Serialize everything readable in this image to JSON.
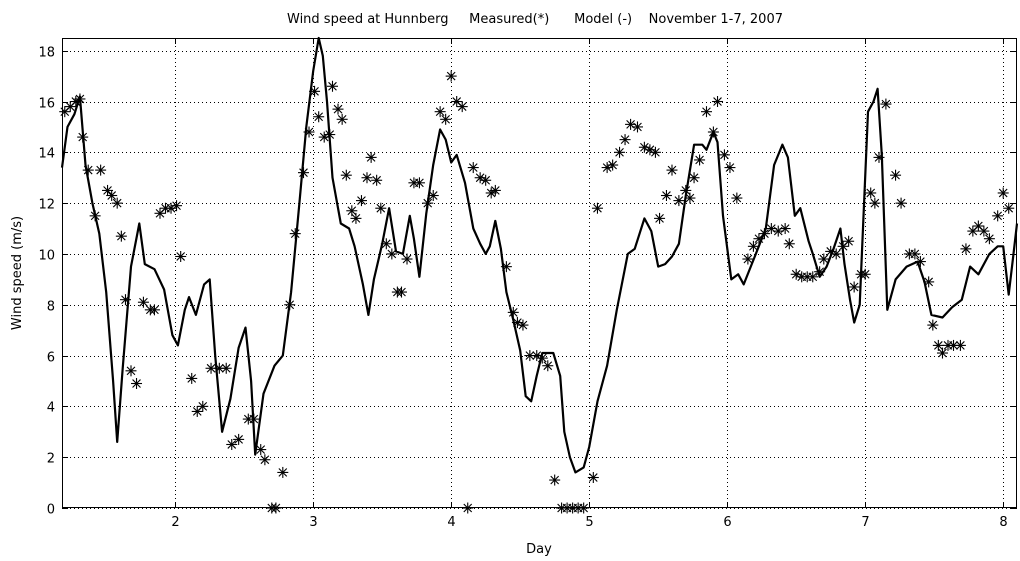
{
  "chart_data": {
    "type": "line",
    "title": "Wind speed at Hunnberg     Measured(*)      Model (-)    November 1-7, 2007",
    "xlabel": "Day",
    "ylabel": "Wind speed (m/s)",
    "xlim": [
      1.18,
      8.1
    ],
    "ylim": [
      0,
      18.5
    ],
    "xticks": [
      2,
      3,
      4,
      5,
      6,
      7,
      8
    ],
    "yticks": [
      0,
      2,
      4,
      6,
      8,
      10,
      12,
      14,
      16,
      18
    ],
    "grid": true,
    "series": [
      {
        "name": "Model",
        "style": "solid line",
        "points": [
          [
            1.18,
            13.4
          ],
          [
            1.22,
            15.0
          ],
          [
            1.27,
            15.5
          ],
          [
            1.31,
            16.2
          ],
          [
            1.35,
            13.5
          ],
          [
            1.4,
            12.0
          ],
          [
            1.45,
            10.8
          ],
          [
            1.5,
            8.5
          ],
          [
            1.55,
            5.0
          ],
          [
            1.58,
            2.6
          ],
          [
            1.62,
            5.5
          ],
          [
            1.68,
            9.5
          ],
          [
            1.74,
            11.2
          ],
          [
            1.78,
            9.6
          ],
          [
            1.85,
            9.4
          ],
          [
            1.92,
            8.6
          ],
          [
            1.98,
            6.8
          ],
          [
            2.02,
            6.4
          ],
          [
            2.07,
            7.8
          ],
          [
            2.1,
            8.3
          ],
          [
            2.15,
            7.6
          ],
          [
            2.21,
            8.8
          ],
          [
            2.25,
            9.0
          ],
          [
            2.29,
            6.0
          ],
          [
            2.34,
            3.0
          ],
          [
            2.4,
            4.3
          ],
          [
            2.46,
            6.3
          ],
          [
            2.51,
            7.1
          ],
          [
            2.55,
            5.0
          ],
          [
            2.58,
            2.1
          ],
          [
            2.64,
            4.5
          ],
          [
            2.72,
            5.6
          ],
          [
            2.78,
            6.0
          ],
          [
            2.84,
            8.5
          ],
          [
            2.9,
            12.0
          ],
          [
            2.95,
            15.0
          ],
          [
            3.0,
            17.2
          ],
          [
            3.04,
            18.5
          ],
          [
            3.07,
            17.8
          ],
          [
            3.1,
            16.0
          ],
          [
            3.14,
            13.0
          ],
          [
            3.2,
            11.2
          ],
          [
            3.26,
            11.0
          ],
          [
            3.3,
            10.3
          ],
          [
            3.36,
            8.8
          ],
          [
            3.4,
            7.6
          ],
          [
            3.44,
            9.0
          ],
          [
            3.5,
            10.4
          ],
          [
            3.55,
            11.8
          ],
          [
            3.6,
            10.1
          ],
          [
            3.65,
            10.0
          ],
          [
            3.7,
            11.5
          ],
          [
            3.73,
            10.6
          ],
          [
            3.77,
            9.1
          ],
          [
            3.82,
            11.6
          ],
          [
            3.87,
            13.5
          ],
          [
            3.92,
            14.9
          ],
          [
            3.96,
            14.5
          ],
          [
            4.0,
            13.6
          ],
          [
            4.04,
            13.9
          ],
          [
            4.1,
            12.8
          ],
          [
            4.16,
            11.0
          ],
          [
            4.21,
            10.4
          ],
          [
            4.25,
            10.0
          ],
          [
            4.28,
            10.3
          ],
          [
            4.32,
            11.3
          ],
          [
            4.36,
            10.2
          ],
          [
            4.4,
            8.5
          ],
          [
            4.45,
            7.4
          ],
          [
            4.5,
            6.2
          ],
          [
            4.54,
            4.4
          ],
          [
            4.58,
            4.2
          ],
          [
            4.62,
            5.2
          ],
          [
            4.66,
            6.1
          ],
          [
            4.74,
            6.1
          ],
          [
            4.79,
            5.2
          ],
          [
            4.82,
            3.0
          ],
          [
            4.86,
            2.0
          ],
          [
            4.9,
            1.4
          ],
          [
            4.96,
            1.6
          ],
          [
            5.0,
            2.4
          ],
          [
            5.06,
            4.2
          ],
          [
            5.13,
            5.6
          ],
          [
            5.2,
            7.8
          ],
          [
            5.28,
            10.0
          ],
          [
            5.33,
            10.2
          ],
          [
            5.4,
            11.4
          ],
          [
            5.45,
            10.9
          ],
          [
            5.5,
            9.5
          ],
          [
            5.55,
            9.6
          ],
          [
            5.6,
            9.9
          ],
          [
            5.65,
            10.4
          ],
          [
            5.7,
            12.3
          ],
          [
            5.76,
            14.3
          ],
          [
            5.82,
            14.3
          ],
          [
            5.85,
            14.1
          ],
          [
            5.9,
            14.8
          ],
          [
            5.93,
            14.4
          ],
          [
            5.97,
            11.5
          ],
          [
            6.03,
            9.0
          ],
          [
            6.08,
            9.2
          ],
          [
            6.12,
            8.8
          ],
          [
            6.2,
            9.9
          ],
          [
            6.28,
            11.0
          ],
          [
            6.34,
            13.5
          ],
          [
            6.4,
            14.3
          ],
          [
            6.44,
            13.8
          ],
          [
            6.49,
            11.5
          ],
          [
            6.53,
            11.8
          ],
          [
            6.59,
            10.5
          ],
          [
            6.62,
            10.0
          ],
          [
            6.67,
            9.1
          ],
          [
            6.72,
            9.5
          ],
          [
            6.77,
            10.2
          ],
          [
            6.82,
            11.0
          ],
          [
            6.85,
            9.6
          ],
          [
            6.89,
            8.2
          ],
          [
            6.92,
            7.3
          ],
          [
            6.96,
            8.0
          ],
          [
            7.02,
            15.6
          ],
          [
            7.06,
            16.0
          ],
          [
            7.09,
            16.5
          ],
          [
            7.12,
            13.9
          ],
          [
            7.16,
            7.8
          ],
          [
            7.22,
            9.0
          ],
          [
            7.3,
            9.5
          ],
          [
            7.38,
            9.7
          ],
          [
            7.43,
            8.9
          ],
          [
            7.48,
            7.6
          ],
          [
            7.56,
            7.5
          ],
          [
            7.63,
            7.9
          ],
          [
            7.7,
            8.2
          ],
          [
            7.76,
            9.5
          ],
          [
            7.82,
            9.2
          ],
          [
            7.9,
            10.0
          ],
          [
            7.96,
            10.3
          ],
          [
            8.0,
            10.3
          ],
          [
            8.04,
            8.4
          ],
          [
            8.07,
            9.8
          ],
          [
            8.1,
            11.2
          ]
        ]
      },
      {
        "name": "Measured",
        "style": "asterisk markers",
        "points": [
          [
            1.2,
            15.6
          ],
          [
            1.24,
            15.8
          ],
          [
            1.28,
            16.0
          ],
          [
            1.31,
            16.1
          ],
          [
            1.33,
            14.6
          ],
          [
            1.37,
            13.3
          ],
          [
            1.42,
            11.5
          ],
          [
            1.46,
            13.3
          ],
          [
            1.51,
            12.5
          ],
          [
            1.54,
            12.3
          ],
          [
            1.58,
            12.0
          ],
          [
            1.61,
            10.7
          ],
          [
            1.64,
            8.2
          ],
          [
            1.68,
            5.4
          ],
          [
            1.72,
            4.9
          ],
          [
            1.77,
            8.1
          ],
          [
            1.82,
            7.8
          ],
          [
            1.85,
            7.8
          ],
          [
            1.89,
            11.6
          ],
          [
            1.93,
            11.8
          ],
          [
            1.97,
            11.8
          ],
          [
            2.01,
            11.9
          ],
          [
            2.04,
            9.9
          ],
          [
            2.12,
            5.1
          ],
          [
            2.16,
            3.8
          ],
          [
            2.2,
            4.0
          ],
          [
            2.26,
            5.5
          ],
          [
            2.32,
            5.5
          ],
          [
            2.37,
            5.5
          ],
          [
            2.41,
            2.5
          ],
          [
            2.46,
            2.7
          ],
          [
            2.53,
            3.5
          ],
          [
            2.57,
            3.5
          ],
          [
            2.62,
            2.3
          ],
          [
            2.65,
            1.9
          ],
          [
            2.7,
            0.0
          ],
          [
            2.73,
            0.0
          ],
          [
            2.78,
            1.4
          ],
          [
            2.83,
            8.0
          ],
          [
            2.87,
            10.8
          ],
          [
            2.93,
            13.2
          ],
          [
            2.97,
            14.8
          ],
          [
            3.01,
            16.4
          ],
          [
            3.04,
            15.4
          ],
          [
            3.08,
            14.6
          ],
          [
            3.12,
            14.7
          ],
          [
            3.14,
            16.6
          ],
          [
            3.18,
            15.7
          ],
          [
            3.21,
            15.3
          ],
          [
            3.24,
            13.1
          ],
          [
            3.28,
            11.7
          ],
          [
            3.31,
            11.4
          ],
          [
            3.35,
            12.1
          ],
          [
            3.39,
            13.0
          ],
          [
            3.42,
            13.8
          ],
          [
            3.46,
            12.9
          ],
          [
            3.49,
            11.8
          ],
          [
            3.53,
            10.4
          ],
          [
            3.57,
            10.0
          ],
          [
            3.61,
            8.5
          ],
          [
            3.64,
            8.5
          ],
          [
            3.68,
            9.8
          ],
          [
            3.73,
            12.8
          ],
          [
            3.77,
            12.8
          ],
          [
            3.83,
            12.0
          ],
          [
            3.87,
            12.3
          ],
          [
            3.92,
            15.6
          ],
          [
            3.96,
            15.3
          ],
          [
            4.0,
            17.0
          ],
          [
            4.04,
            16.0
          ],
          [
            4.08,
            15.8
          ],
          [
            4.12,
            0.0
          ],
          [
            4.16,
            13.4
          ],
          [
            4.21,
            13.0
          ],
          [
            4.25,
            12.9
          ],
          [
            4.29,
            12.4
          ],
          [
            4.32,
            12.5
          ],
          [
            4.4,
            9.5
          ],
          [
            4.45,
            7.7
          ],
          [
            4.48,
            7.3
          ],
          [
            4.52,
            7.2
          ],
          [
            4.57,
            6.0
          ],
          [
            4.62,
            6.0
          ],
          [
            4.66,
            5.9
          ],
          [
            4.7,
            5.6
          ],
          [
            4.75,
            1.1
          ],
          [
            4.8,
            0.0
          ],
          [
            4.84,
            0.0
          ],
          [
            4.88,
            0.0
          ],
          [
            4.92,
            0.0
          ],
          [
            4.96,
            0.0
          ],
          [
            5.03,
            1.2
          ],
          [
            5.06,
            11.8
          ],
          [
            5.13,
            13.4
          ],
          [
            5.17,
            13.5
          ],
          [
            5.22,
            14.0
          ],
          [
            5.26,
            14.5
          ],
          [
            5.3,
            15.1
          ],
          [
            5.35,
            15.0
          ],
          [
            5.4,
            14.2
          ],
          [
            5.44,
            14.1
          ],
          [
            5.48,
            14.0
          ],
          [
            5.51,
            11.4
          ],
          [
            5.56,
            12.3
          ],
          [
            5.6,
            13.3
          ],
          [
            5.65,
            12.1
          ],
          [
            5.7,
            12.5
          ],
          [
            5.73,
            12.2
          ],
          [
            5.76,
            13.0
          ],
          [
            5.8,
            13.7
          ],
          [
            5.85,
            15.6
          ],
          [
            5.9,
            14.8
          ],
          [
            5.93,
            16.0
          ],
          [
            5.98,
            13.9
          ],
          [
            6.02,
            13.4
          ],
          [
            6.07,
            12.2
          ],
          [
            6.15,
            9.8
          ],
          [
            6.19,
            10.3
          ],
          [
            6.23,
            10.6
          ],
          [
            6.27,
            10.8
          ],
          [
            6.32,
            11.0
          ],
          [
            6.37,
            10.9
          ],
          [
            6.42,
            11.0
          ],
          [
            6.45,
            10.4
          ],
          [
            6.5,
            9.2
          ],
          [
            6.54,
            9.1
          ],
          [
            6.58,
            9.1
          ],
          [
            6.62,
            9.1
          ],
          [
            6.67,
            9.3
          ],
          [
            6.7,
            9.8
          ],
          [
            6.75,
            10.1
          ],
          [
            6.79,
            10.0
          ],
          [
            6.84,
            10.3
          ],
          [
            6.88,
            10.5
          ],
          [
            6.92,
            8.7
          ],
          [
            6.97,
            9.2
          ],
          [
            7.0,
            9.2
          ],
          [
            7.04,
            12.4
          ],
          [
            7.07,
            12.0
          ],
          [
            7.1,
            13.8
          ],
          [
            7.15,
            15.9
          ],
          [
            7.22,
            13.1
          ],
          [
            7.26,
            12.0
          ],
          [
            7.32,
            10.0
          ],
          [
            7.36,
            10.0
          ],
          [
            7.4,
            9.7
          ],
          [
            7.46,
            8.9
          ],
          [
            7.49,
            7.2
          ],
          [
            7.53,
            6.4
          ],
          [
            7.56,
            6.1
          ],
          [
            7.6,
            6.4
          ],
          [
            7.64,
            6.4
          ],
          [
            7.69,
            6.4
          ],
          [
            7.73,
            10.2
          ],
          [
            7.78,
            10.9
          ],
          [
            7.82,
            11.1
          ],
          [
            7.86,
            10.9
          ],
          [
            7.9,
            10.6
          ],
          [
            7.96,
            11.5
          ],
          [
            8.0,
            12.4
          ],
          [
            8.04,
            11.8
          ]
        ]
      }
    ]
  }
}
